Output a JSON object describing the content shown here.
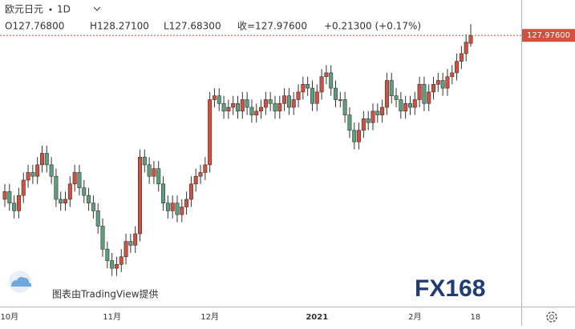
{
  "header": {
    "symbol": "欧元日元",
    "interval": "1D",
    "ohlc": [
      "O127.76800",
      "H128.27100",
      "L127.68300",
      "收=127.97600",
      "+0.21300 (+0.17%)"
    ]
  },
  "watermark": "图表由TradingView提供",
  "logo": "FX168",
  "chart_data": {
    "type": "candlestick",
    "categories": [
      null,
      "10月",
      null,
      null,
      null,
      null,
      null,
      null,
      null,
      null,
      null,
      null,
      null,
      null,
      null,
      null,
      null,
      null,
      null,
      null,
      null,
      null,
      null,
      "11月",
      null,
      null,
      null,
      null,
      null,
      null,
      null,
      null,
      null,
      null,
      null,
      null,
      null,
      null,
      null,
      null,
      null,
      null,
      null,
      null,
      "12月",
      null,
      null,
      null,
      null,
      null,
      null,
      null,
      null,
      null,
      null,
      null,
      null,
      null,
      null,
      null,
      null,
      null,
      null,
      null,
      null,
      null,
      null,
      "2021",
      null,
      null,
      null,
      null,
      null,
      null,
      null,
      null,
      null,
      null,
      null,
      null,
      null,
      null,
      null,
      null,
      null,
      null,
      null,
      null,
      "2月",
      null,
      null,
      null,
      null,
      null,
      null,
      null,
      null,
      null,
      null,
      null,
      null,
      "18"
    ],
    "open": [
      123.7,
      123.9,
      123.6,
      123.4,
      123.8,
      124.2,
      124.4,
      124.3,
      124.6,
      124.9,
      124.6,
      124.3,
      123.7,
      123.6,
      123.7,
      124.1,
      124.4,
      124.0,
      123.8,
      123.6,
      123.4,
      123.0,
      122.4,
      122.1,
      121.9,
      122.0,
      122.2,
      122.6,
      122.5,
      122.8,
      124.8,
      124.6,
      124.3,
      124.5,
      124.1,
      123.6,
      123.4,
      123.6,
      123.3,
      123.5,
      123.7,
      124.1,
      124.3,
      124.4,
      124.6,
      126.3,
      126.4,
      126.2,
      126.0,
      126.1,
      126.2,
      126.0,
      126.3,
      126.1,
      125.9,
      126.0,
      126.1,
      126.3,
      126.2,
      126.0,
      126.2,
      126.4,
      126.1,
      126.3,
      126.5,
      126.7,
      126.6,
      126.2,
      126.5,
      126.9,
      127.0,
      126.6,
      126.3,
      126.3,
      125.9,
      125.5,
      125.2,
      125.5,
      125.8,
      125.7,
      126.0,
      125.9,
      126.1,
      126.8,
      126.4,
      126.3,
      126.0,
      126.2,
      126.1,
      126.3,
      126.7,
      126.2,
      126.5,
      126.7,
      126.8,
      126.6,
      126.9,
      127.0,
      127.3,
      127.5,
      127.768,
      null
    ],
    "high": [
      124.1,
      124.1,
      123.8,
      124.0,
      124.4,
      124.6,
      124.6,
      124.8,
      125.1,
      125.1,
      124.8,
      124.5,
      123.9,
      123.9,
      124.3,
      124.6,
      124.6,
      124.2,
      124.0,
      123.8,
      123.6,
      123.2,
      122.6,
      122.3,
      122.2,
      122.4,
      122.8,
      122.8,
      123.0,
      125.0,
      125.0,
      124.8,
      124.7,
      124.7,
      124.3,
      123.8,
      123.8,
      123.8,
      123.7,
      123.9,
      124.3,
      124.5,
      124.6,
      124.8,
      126.5,
      126.6,
      126.6,
      126.4,
      126.3,
      126.4,
      126.4,
      126.5,
      126.5,
      126.3,
      126.2,
      126.3,
      126.5,
      126.5,
      126.4,
      126.4,
      126.6,
      126.6,
      126.5,
      126.7,
      126.9,
      126.9,
      126.8,
      126.7,
      127.1,
      127.2,
      127.2,
      126.8,
      126.5,
      126.5,
      126.1,
      125.7,
      125.7,
      126.0,
      126.0,
      126.2,
      126.2,
      126.3,
      127.0,
      127.0,
      126.6,
      126.5,
      126.4,
      126.4,
      126.5,
      126.9,
      126.9,
      126.7,
      126.9,
      127.0,
      127.0,
      127.1,
      127.2,
      127.5,
      127.7,
      128.0,
      128.271,
      null
    ],
    "low": [
      123.5,
      123.4,
      123.2,
      123.2,
      123.6,
      124.0,
      124.1,
      124.1,
      124.4,
      124.4,
      124.1,
      123.5,
      123.4,
      123.4,
      123.5,
      123.9,
      123.8,
      123.6,
      123.4,
      123.2,
      122.8,
      122.2,
      121.9,
      121.7,
      121.7,
      121.8,
      122.0,
      122.3,
      122.3,
      122.6,
      124.4,
      124.1,
      124.1,
      123.9,
      123.4,
      123.2,
      123.2,
      123.1,
      123.1,
      123.3,
      123.5,
      123.9,
      124.1,
      124.2,
      124.4,
      126.1,
      126.0,
      125.8,
      125.8,
      125.9,
      125.8,
      125.8,
      125.9,
      125.7,
      125.7,
      125.8,
      125.9,
      126.0,
      125.8,
      125.8,
      126.0,
      125.9,
      125.9,
      126.1,
      126.3,
      126.4,
      126.0,
      126.0,
      126.3,
      126.7,
      126.4,
      126.1,
      126.1,
      125.7,
      125.3,
      125.0,
      125.0,
      125.3,
      125.5,
      125.5,
      125.7,
      125.7,
      125.9,
      126.2,
      126.1,
      125.8,
      125.8,
      125.9,
      125.9,
      126.1,
      126.0,
      126.0,
      126.3,
      126.5,
      126.4,
      126.4,
      126.7,
      126.8,
      127.1,
      127.3,
      127.683,
      null
    ],
    "close": [
      123.9,
      123.6,
      123.4,
      123.8,
      124.2,
      124.4,
      124.3,
      124.6,
      124.9,
      124.6,
      124.3,
      123.7,
      123.6,
      123.7,
      124.1,
      124.4,
      124.0,
      123.8,
      123.6,
      123.4,
      123.0,
      122.4,
      122.1,
      121.9,
      122.0,
      122.2,
      122.6,
      122.5,
      122.8,
      124.8,
      124.6,
      124.3,
      124.5,
      124.1,
      123.6,
      123.4,
      123.6,
      123.3,
      123.5,
      123.7,
      124.1,
      124.3,
      124.4,
      124.6,
      126.3,
      126.4,
      126.2,
      126.0,
      126.1,
      126.2,
      126.0,
      126.3,
      126.1,
      125.9,
      126.0,
      126.1,
      126.3,
      126.2,
      126.0,
      126.2,
      126.4,
      126.1,
      126.3,
      126.5,
      126.7,
      126.6,
      126.2,
      126.5,
      126.9,
      127.0,
      126.6,
      126.3,
      126.3,
      125.9,
      125.5,
      125.2,
      125.5,
      125.8,
      125.7,
      126.0,
      125.9,
      126.1,
      126.8,
      126.4,
      126.3,
      126.0,
      126.2,
      126.1,
      126.3,
      126.7,
      126.2,
      126.5,
      126.7,
      126.8,
      126.6,
      126.9,
      127.0,
      127.3,
      127.5,
      127.8,
      127.976,
      null
    ],
    "up_color": "#d2503f",
    "down_color": "#5d9e7d",
    "ylim": [
      120.9,
      128.9
    ],
    "last_price": {
      "value": 127.976,
      "label": "127.97600"
    }
  }
}
